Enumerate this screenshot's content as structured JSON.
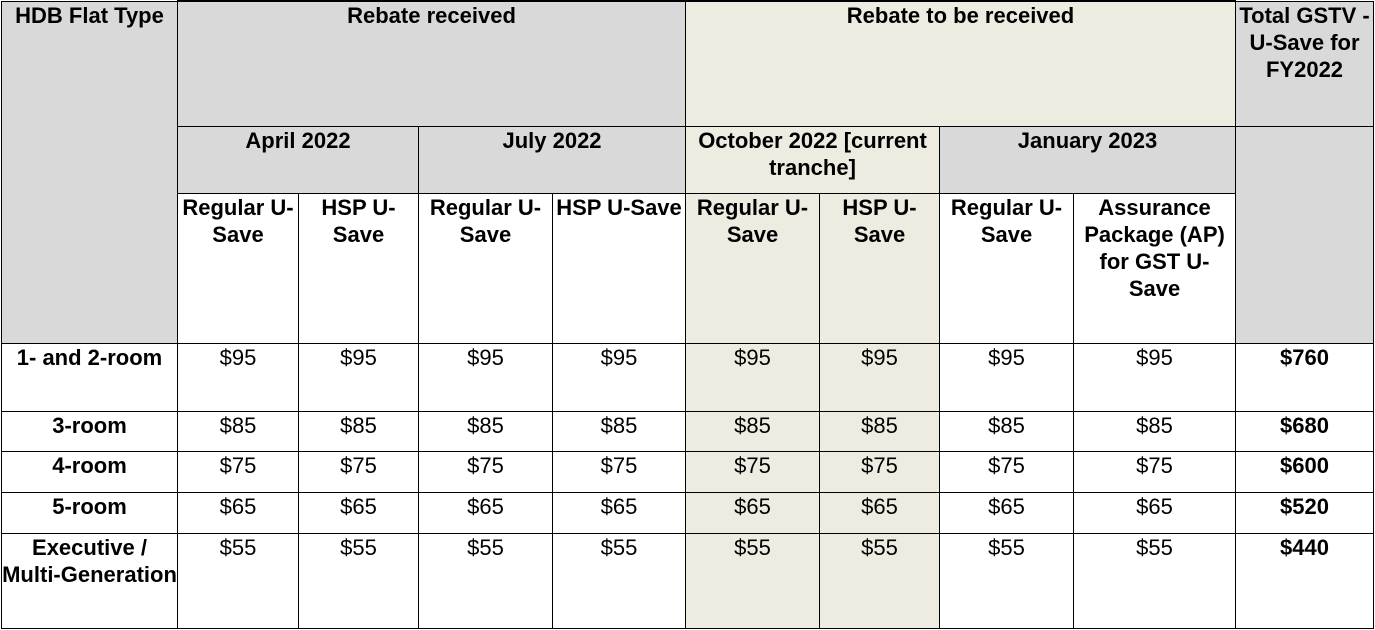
{
  "header": {
    "flat_type": "HDB Flat Type",
    "rebate_received": "Rebate received",
    "rebate_to_be_received": "Rebate to be received",
    "total": "Total GSTV -U-Save for FY2022",
    "periods": [
      "April 2022",
      "July 2022",
      "October 2022 [current tranche]",
      "January 2023"
    ],
    "sub": [
      "Regular U-Save",
      "HSP U-Save",
      "Regular U-Save",
      "HSP U-Save",
      "Regular U-Save",
      "HSP U-Save",
      "Regular U-Save",
      "Assurance Package (AP) for GST U-Save"
    ]
  },
  "rows": [
    {
      "type": "1- and 2-room",
      "values": [
        "$95",
        "$95",
        "$95",
        "$95",
        "$95",
        "$95",
        "$95",
        "$95"
      ],
      "total": "$760"
    },
    {
      "type": "3-room",
      "values": [
        "$85",
        "$85",
        "$85",
        "$85",
        "$85",
        "$85",
        "$85",
        "$85"
      ],
      "total": "$680"
    },
    {
      "type": "4-room",
      "values": [
        "$75",
        "$75",
        "$75",
        "$75",
        "$75",
        "$75",
        "$75",
        "$75"
      ],
      "total": "$600"
    },
    {
      "type": "5-room",
      "values": [
        "$65",
        "$65",
        "$65",
        "$65",
        "$65",
        "$65",
        "$65",
        "$65"
      ],
      "total": "$520"
    },
    {
      "type": "Executive / Multi-Generation",
      "values": [
        "$55",
        "$55",
        "$55",
        "$55",
        "$55",
        "$55",
        "$55",
        "$55"
      ],
      "total": "$440"
    }
  ],
  "colors": {
    "grey_header": "#d9d9d9",
    "beige_highlight": "#eeece1"
  }
}
